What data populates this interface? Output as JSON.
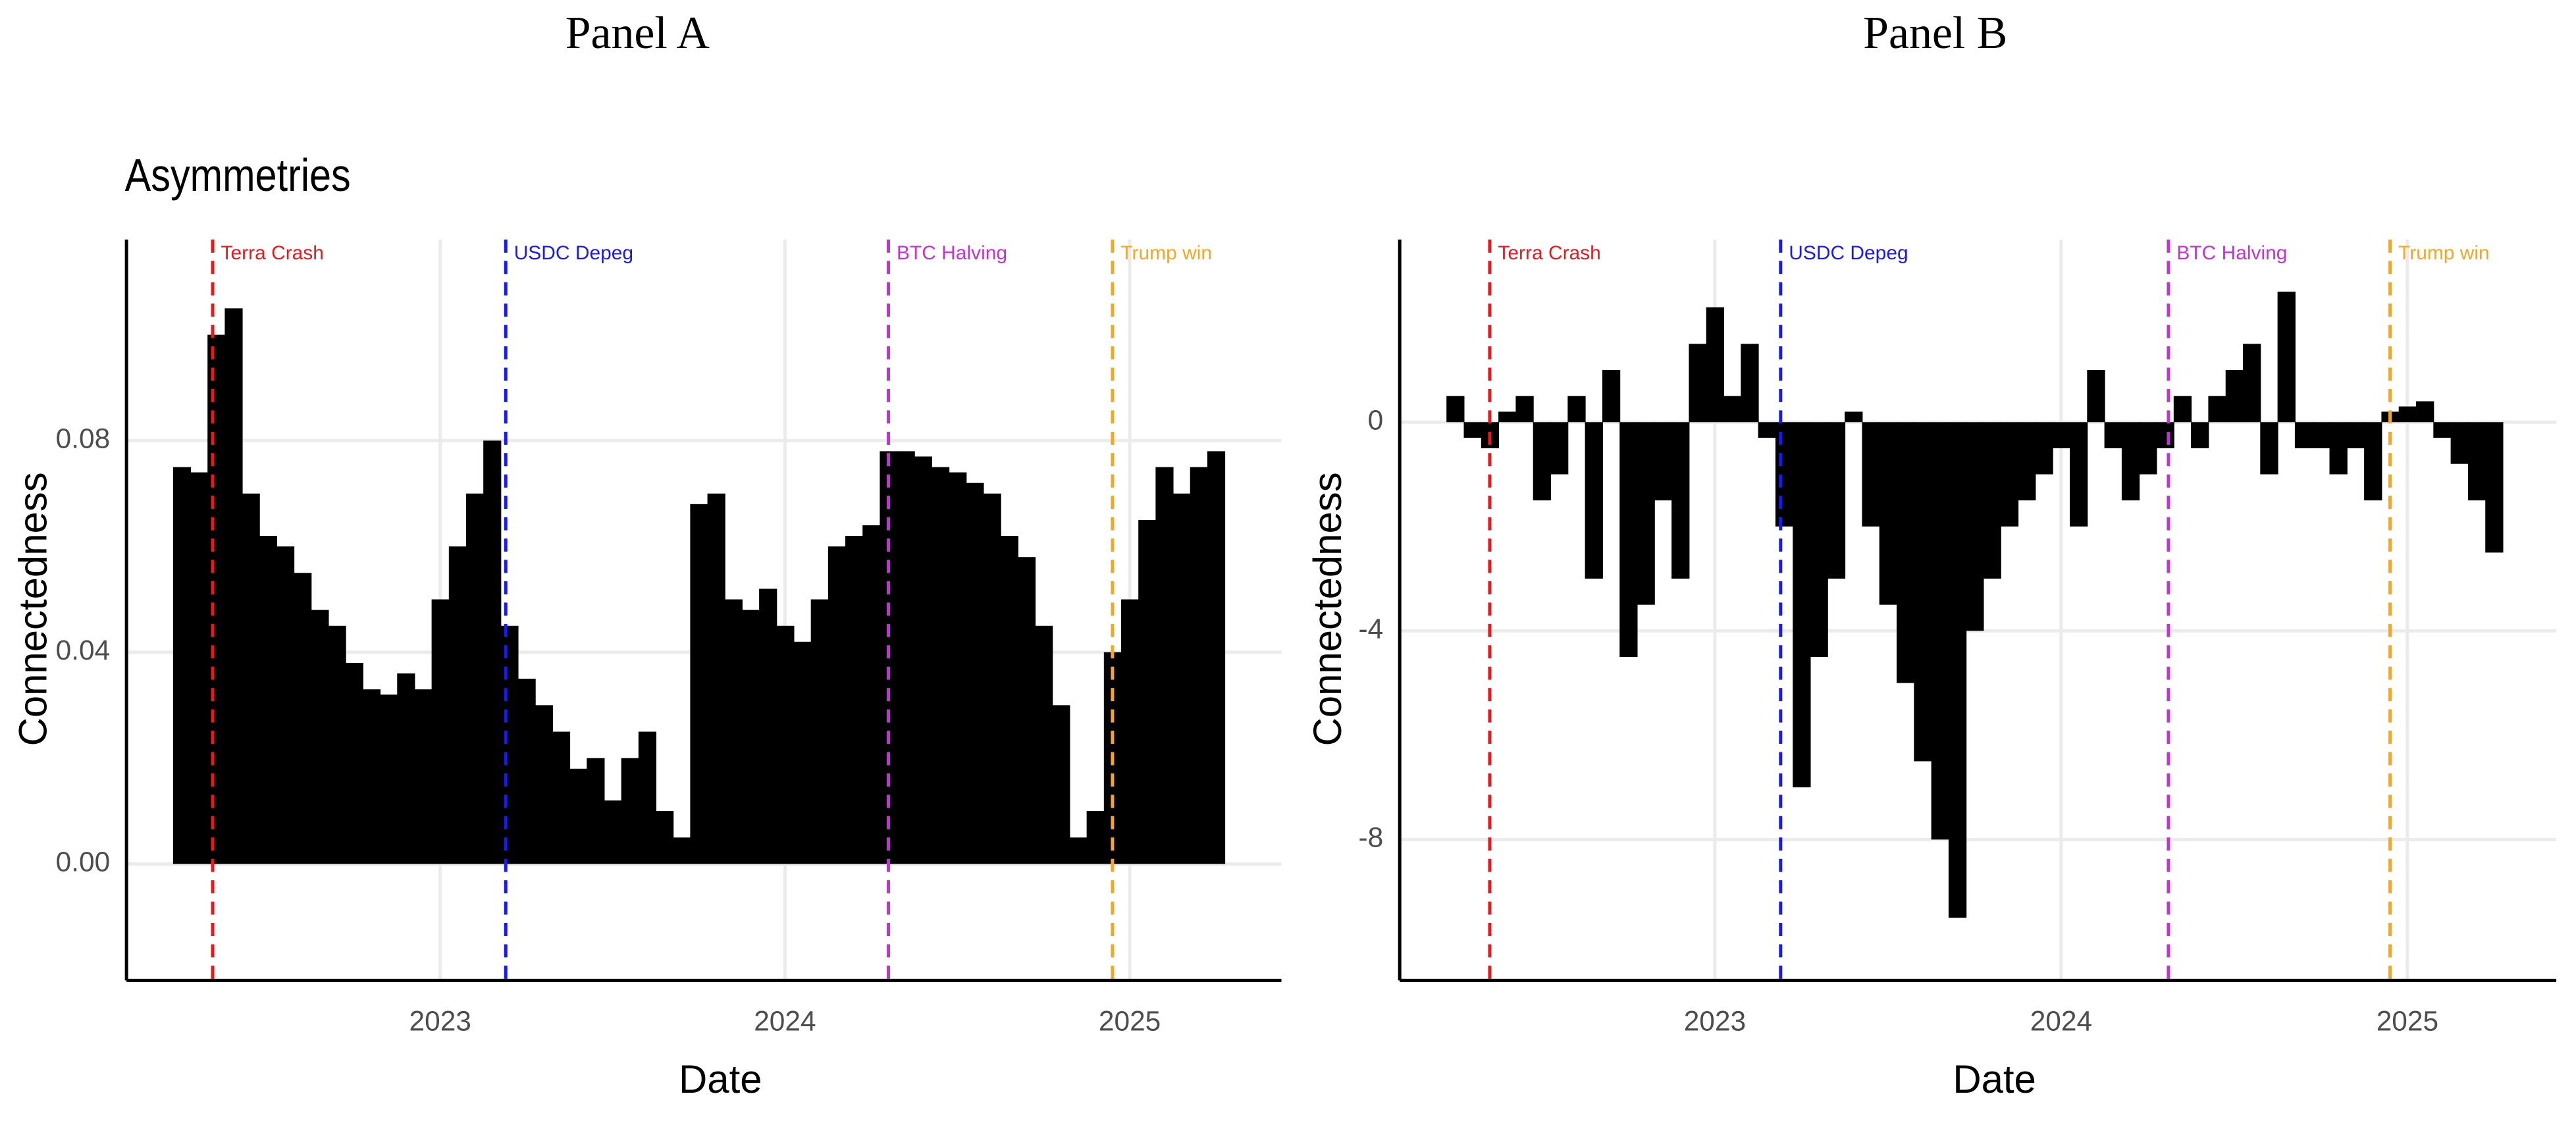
{
  "chart_data": [
    {
      "type": "area",
      "panel": "Panel A",
      "title": "Asymmetries",
      "x_label": "Date",
      "y_label": "Connectedness",
      "color": "#000000",
      "grid": true,
      "xlim": [
        2022.09,
        2025.44
      ],
      "ylim": [
        -0.022,
        0.118
      ],
      "xticks": [
        2023,
        2024,
        2025
      ],
      "yticks": [
        {
          "value": 0,
          "label": "0.00"
        },
        {
          "value": 0.04,
          "label": "0.04"
        },
        {
          "value": 0.08,
          "label": "0.08"
        }
      ],
      "x": [
        2022.25,
        2022.3,
        2022.35,
        2022.4,
        2022.45,
        2022.5,
        2022.55,
        2022.6,
        2022.65,
        2022.7,
        2022.75,
        2022.8,
        2022.85,
        2022.9,
        2022.95,
        2023,
        2023.05,
        2023.1,
        2023.15,
        2023.2,
        2023.25,
        2023.3,
        2023.35,
        2023.4,
        2023.45,
        2023.5,
        2023.55,
        2023.6,
        2023.65,
        2023.7,
        2023.75,
        2023.8,
        2023.85,
        2023.9,
        2023.95,
        2024,
        2024.05,
        2024.1,
        2024.15,
        2024.2,
        2024.25,
        2024.3,
        2024.35,
        2024.4,
        2024.45,
        2024.5,
        2024.55,
        2024.6,
        2024.65,
        2024.7,
        2024.75,
        2024.8,
        2024.85,
        2024.9,
        2024.95,
        2025,
        2025.05,
        2025.1,
        2025.15,
        2025.2,
        2025.25
      ],
      "values": [
        0.075,
        0.074,
        0.1,
        0.105,
        0.07,
        0.062,
        0.06,
        0.055,
        0.048,
        0.045,
        0.038,
        0.033,
        0.032,
        0.036,
        0.033,
        0.05,
        0.06,
        0.07,
        0.08,
        0.045,
        0.035,
        0.03,
        0.025,
        0.018,
        0.02,
        0.012,
        0.02,
        0.025,
        0.01,
        0.005,
        0.068,
        0.07,
        0.05,
        0.048,
        0.052,
        0.045,
        0.042,
        0.05,
        0.06,
        0.062,
        0.064,
        0.078,
        0.078,
        0.077,
        0.075,
        0.074,
        0.072,
        0.07,
        0.062,
        0.058,
        0.045,
        0.03,
        0.005,
        0.01,
        0.04,
        0.05,
        0.065,
        0.075,
        0.07,
        0.075,
        0.078
      ],
      "annotations": [
        {
          "label": "Terra Crash",
          "x": 2022.34,
          "color": "#e8191c"
        },
        {
          "label": "USDC Depeg",
          "x": 2023.19,
          "color": "#1a1aee"
        },
        {
          "label": "BTC Halving",
          "x": 2024.3,
          "color": "#c431d6"
        },
        {
          "label": "Trump win",
          "x": 2024.95,
          "color": "#f5a623"
        }
      ]
    },
    {
      "type": "area",
      "panel": "Panel B",
      "x_label": "Date",
      "y_label": "Connectedness",
      "color": "#000000",
      "grid": true,
      "xlim": [
        2022.09,
        2025.43
      ],
      "ylim": [
        -10.7,
        3.5
      ],
      "xticks": [
        2023,
        2024,
        2025
      ],
      "yticks": [
        -8,
        -4,
        0
      ],
      "x": [
        2022.25,
        2022.3,
        2022.35,
        2022.4,
        2022.45,
        2022.5,
        2022.55,
        2022.6,
        2022.65,
        2022.7,
        2022.75,
        2022.8,
        2022.85,
        2022.9,
        2022.95,
        2023,
        2023.05,
        2023.1,
        2023.15,
        2023.2,
        2023.25,
        2023.3,
        2023.35,
        2023.4,
        2023.45,
        2023.5,
        2023.55,
        2023.6,
        2023.65,
        2023.7,
        2023.75,
        2023.8,
        2023.85,
        2023.9,
        2023.95,
        2024,
        2024.05,
        2024.1,
        2024.15,
        2024.2,
        2024.25,
        2024.3,
        2024.35,
        2024.4,
        2024.45,
        2024.5,
        2024.55,
        2024.6,
        2024.65,
        2024.7,
        2024.75,
        2024.8,
        2024.85,
        2024.9,
        2024.95,
        2025,
        2025.05,
        2025.1,
        2025.15,
        2025.2,
        2025.25
      ],
      "values": [
        0.5,
        -0.3,
        -0.5,
        0.2,
        0.5,
        -1.5,
        -1,
        0.5,
        -3,
        1,
        -4.5,
        -3.5,
        -1.5,
        -3,
        1.5,
        2.2,
        0.5,
        1.5,
        -0.3,
        -2,
        -7,
        -4.5,
        -3,
        0.2,
        -2,
        -3.5,
        -5,
        -6.5,
        -8,
        -9.5,
        -4,
        -3,
        -2,
        -1.5,
        -1,
        -0.5,
        -2,
        1,
        -0.5,
        -1.5,
        -1,
        -0.5,
        0.5,
        -0.5,
        0.5,
        1,
        1.5,
        -1,
        2.5,
        -0.5,
        -0.5,
        -1,
        -0.5,
        -1.5,
        0.2,
        0.3,
        0.4,
        -0.3,
        -0.8,
        -1.5,
        -2.5
      ],
      "annotations": [
        {
          "label": "Terra Crash",
          "x": 2022.35,
          "color": "#e8191c"
        },
        {
          "label": "USDC Depeg",
          "x": 2023.19,
          "color": "#1a1aee"
        },
        {
          "label": "BTC Halving",
          "x": 2024.31,
          "color": "#c431d6"
        },
        {
          "label": "Trump win",
          "x": 2024.95,
          "color": "#f5a623"
        }
      ]
    }
  ]
}
